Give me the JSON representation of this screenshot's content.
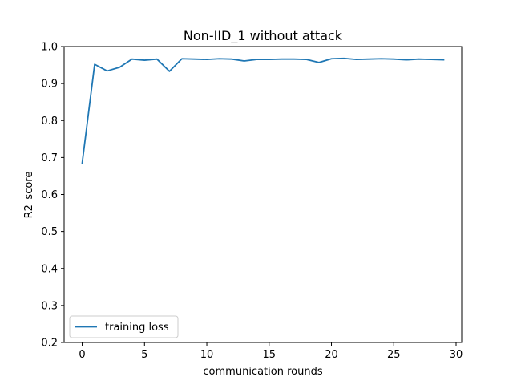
{
  "chart_data": {
    "type": "line",
    "title": "Non-IID_1 without attack",
    "xlabel": "communication rounds",
    "ylabel": "R2_score",
    "xlim": [
      -1.45,
      30.45
    ],
    "ylim": [
      0.2,
      1.0
    ],
    "xticks": [
      0,
      5,
      10,
      15,
      20,
      25,
      30
    ],
    "yticks": [
      0.2,
      0.3,
      0.4,
      0.5,
      0.6,
      0.7,
      0.8,
      0.9,
      1.0
    ],
    "grid": false,
    "legend_position": "lower-left",
    "series": [
      {
        "name": "training loss",
        "color": "#1f77b4",
        "x": [
          0,
          1,
          2,
          3,
          4,
          5,
          6,
          7,
          8,
          9,
          10,
          11,
          12,
          13,
          14,
          15,
          16,
          17,
          18,
          19,
          20,
          21,
          22,
          23,
          24,
          25,
          26,
          27,
          28,
          29
        ],
        "values": [
          0.685,
          0.952,
          0.934,
          0.944,
          0.966,
          0.963,
          0.966,
          0.933,
          0.967,
          0.966,
          0.965,
          0.967,
          0.966,
          0.961,
          0.965,
          0.965,
          0.966,
          0.966,
          0.965,
          0.957,
          0.967,
          0.968,
          0.965,
          0.966,
          0.967,
          0.966,
          0.964,
          0.966,
          0.965,
          0.964
        ]
      }
    ]
  }
}
